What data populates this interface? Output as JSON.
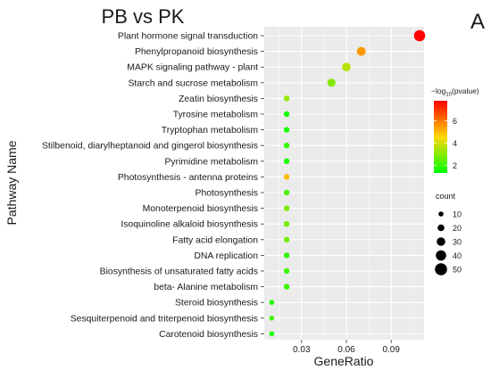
{
  "panel_letter": "A",
  "chart_data": {
    "type": "scatter",
    "title": "PB vs PK",
    "xlabel": "GeneRatio",
    "ylabel": "Pathway Name",
    "xlim": [
      0.005,
      0.112
    ],
    "x_ticks": [
      "0.03",
      "0.06",
      "0.09"
    ],
    "x_tick_values": [
      0.03,
      0.06,
      0.09
    ],
    "grid": true,
    "color_legend": {
      "title_prefix": "−log",
      "title_sub": "10",
      "title_suffix": "(pvalue)",
      "ticks": [
        "2",
        "4",
        "6"
      ],
      "tick_values": [
        2,
        4,
        6
      ],
      "min": 1.3,
      "max": 7.8,
      "low_color": "#00FF00",
      "mid_color": "#FFD700",
      "high_color": "#FF0000"
    },
    "size_legend": {
      "title": "count",
      "labels": [
        "10",
        "20",
        "30",
        "40",
        "50"
      ],
      "values": [
        10,
        20,
        30,
        40,
        50
      ]
    },
    "categories": [
      "Plant hormone signal transduction",
      "Phenylpropanoid biosynthesis",
      "MAPK signaling pathway -  plant",
      "Starch and sucrose metabolism",
      "Zeatin biosynthesis",
      "Tyrosine metabolism",
      "Tryptophan metabolism",
      "Stilbenoid, diarylheptanoid and gingerol biosynthesis",
      "Pyrimidine metabolism",
      "Photosynthesis -  antenna proteins",
      "Photosynthesis",
      "Monoterpenoid biosynthesis",
      "Isoquinoline alkaloid biosynthesis",
      "Fatty acid elongation",
      "DNA replication",
      "Biosynthesis of unsaturated fatty acids",
      "beta- Alanine metabolism",
      "Steroid biosynthesis",
      "Sesquiterpenoid and triterpenoid biosynthesis",
      "Carotenoid biosynthesis"
    ],
    "x": [
      0.109,
      0.07,
      0.06,
      0.05,
      0.02,
      0.02,
      0.02,
      0.02,
      0.02,
      0.02,
      0.02,
      0.02,
      0.02,
      0.02,
      0.02,
      0.02,
      0.02,
      0.01,
      0.01,
      0.01
    ],
    "count": [
      45,
      32,
      30,
      28,
      14,
      14,
      14,
      14,
      14,
      14,
      14,
      14,
      14,
      14,
      14,
      14,
      14,
      10,
      10,
      10
    ],
    "neg_log10_pvalue": [
      7.8,
      5.5,
      3.6,
      3.0,
      3.2,
      1.6,
      1.7,
      2.0,
      1.7,
      5.0,
      2.3,
      2.9,
      2.8,
      2.7,
      1.9,
      2.1,
      2.0,
      1.6,
      2.1,
      1.6
    ]
  }
}
